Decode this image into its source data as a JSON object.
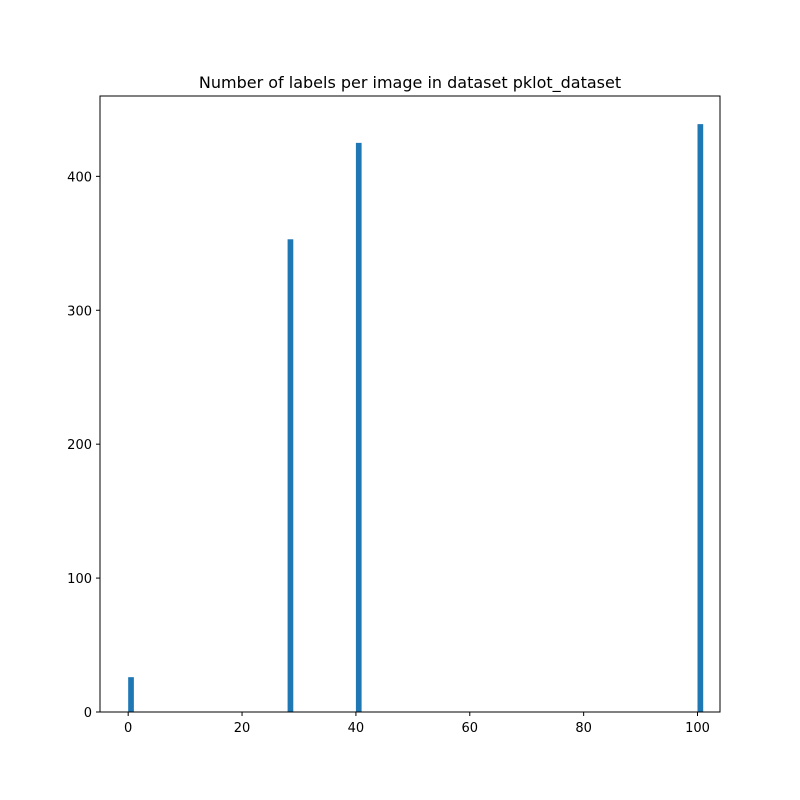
{
  "chart_data": {
    "type": "bar",
    "title": "Number of labels per image in dataset pklot_dataset",
    "xlabel": "",
    "ylabel": "",
    "xlim": [
      -4.95,
      103.95
    ],
    "ylim": [
      0,
      460
    ],
    "x_ticks": [
      0,
      20,
      40,
      60,
      80,
      100
    ],
    "y_ticks": [
      0,
      100,
      200,
      300,
      400
    ],
    "grid": false,
    "bar_color": "#1f77b4",
    "bin_width": 1,
    "bars": [
      {
        "x": 0,
        "value": 26
      },
      {
        "x": 28,
        "value": 353
      },
      {
        "x": 40,
        "value": 425
      },
      {
        "x": 100,
        "value": 439
      }
    ]
  }
}
